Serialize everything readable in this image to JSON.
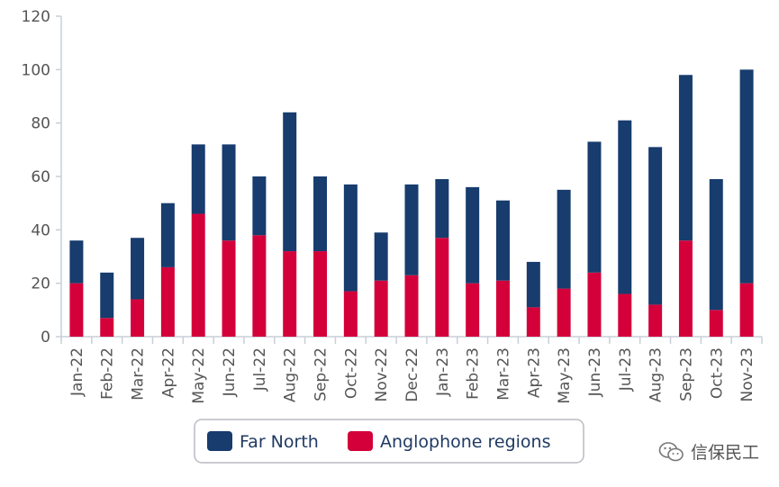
{
  "chart_data": {
    "type": "bar",
    "stacked": true,
    "categories": [
      "Jan-22",
      "Feb-22",
      "Mar-22",
      "Apr-22",
      "May-22",
      "Jun-22",
      "Jul-22",
      "Aug-22",
      "Sep-22",
      "Oct-22",
      "Nov-22",
      "Dec-22",
      "Jan-23",
      "Feb-23",
      "Mar-23",
      "Apr-23",
      "May-23",
      "Jun-23",
      "Jul-23",
      "Aug-23",
      "Sep-23",
      "Oct-23",
      "Nov-23"
    ],
    "series": [
      {
        "name": "Anglophone regions",
        "color": "#d4003a",
        "values": [
          20,
          7,
          14,
          26,
          46,
          36,
          38,
          32,
          32,
          17,
          21,
          23,
          37,
          20,
          21,
          11,
          18,
          24,
          16,
          12,
          36,
          10,
          20
        ]
      },
      {
        "name": "Far North",
        "color": "#173c6d",
        "values": [
          16,
          17,
          23,
          24,
          26,
          36,
          22,
          52,
          28,
          40,
          18,
          34,
          22,
          36,
          30,
          17,
          37,
          49,
          65,
          59,
          62,
          49,
          80
        ]
      }
    ],
    "legend_order": [
      "Far North",
      "Anglophone regions"
    ],
    "legend_position": "bottom",
    "ylim": [
      0,
      120
    ],
    "yticks": [
      0,
      20,
      40,
      60,
      80,
      100,
      120
    ],
    "grid": false,
    "title": "",
    "xlabel": "",
    "ylabel": ""
  },
  "watermark": {
    "text": "信保民工",
    "icon": "wechat-official-account-icon"
  }
}
